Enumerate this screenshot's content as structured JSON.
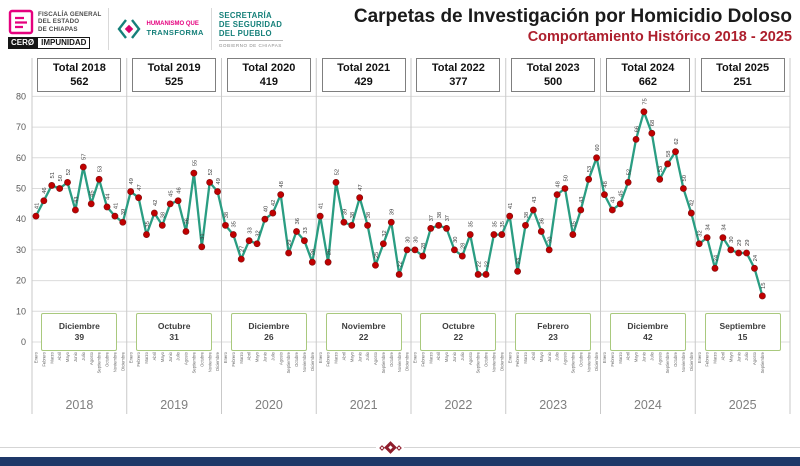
{
  "header": {
    "title": "Carpetas de Investigación por Homicidio Doloso",
    "subtitle": "Comportamiento Histórico 2018 - 2025",
    "logos": {
      "fiscalia": {
        "lines": [
          "FISCALÍA GENERAL",
          "DEL ESTADO",
          "DE CHIAPAS"
        ],
        "badge_left": "CERØ",
        "badge_right": "IMPUNIDAD"
      },
      "humanismo": {
        "lines": [
          "HUMANISMO QUE",
          "TRANSFORMA"
        ]
      },
      "secretaria": {
        "lines": [
          "SECRETARÍA",
          "DE SEGURIDAD",
          "DEL PUEBLO"
        ],
        "sub": "GOBIERNO DE CHIAPAS"
      }
    }
  },
  "colors": {
    "line_teal": "#2a9d82",
    "marker_red": "#c00000",
    "subtitle_red": "#ad1f2d",
    "footer_navy": "#1e3868",
    "min_box_border": "#a9c97e",
    "logo_pink": "#e5007e",
    "logo_teal": "#16807a"
  },
  "chart_data": {
    "type": "line",
    "title": "Carpetas de Investigación por Homicidio Doloso",
    "subtitle": "Comportamiento Histórico 2018 - 2025",
    "xlabel": "",
    "ylabel": "",
    "ylim": [
      0,
      80
    ],
    "y_ticks": [
      0,
      10,
      20,
      30,
      40,
      50,
      60,
      70,
      80
    ],
    "grid": true,
    "legend": false,
    "months": [
      "Enero",
      "Febrero",
      "Marzo",
      "Abril",
      "Mayo",
      "Junio",
      "Julio",
      "Agosto",
      "Septiembre",
      "Octubre",
      "Noviembre",
      "Diciembre"
    ],
    "years": [
      {
        "year": "2018",
        "total_label": "Total 2018",
        "total": "562",
        "min_month": "Diciembre",
        "min_value": "39",
        "values": [
          41,
          46,
          51,
          50,
          52,
          43,
          57,
          45,
          53,
          44,
          41,
          39
        ]
      },
      {
        "year": "2019",
        "total_label": "Total 2019",
        "total": "525",
        "min_month": "Octubre",
        "min_value": "31",
        "values": [
          49,
          47,
          35,
          42,
          38,
          45,
          46,
          36,
          55,
          31,
          52,
          49
        ]
      },
      {
        "year": "2020",
        "total_label": "Total 2020",
        "total": "419",
        "min_month": "Diciembre",
        "min_value": "26",
        "values": [
          38,
          35,
          27,
          33,
          32,
          40,
          42,
          48,
          29,
          36,
          33,
          26
        ]
      },
      {
        "year": "2021",
        "total_label": "Total 2021",
        "total": "429",
        "min_month": "Noviembre",
        "min_value": "22",
        "values": [
          41,
          26,
          52,
          39,
          38,
          47,
          38,
          25,
          32,
          39,
          22,
          30
        ]
      },
      {
        "year": "2022",
        "total_label": "Total 2022",
        "total": "377",
        "min_month": "Octubre",
        "min_value": "22",
        "values": [
          30,
          28,
          37,
          38,
          37,
          30,
          28,
          35,
          22,
          22,
          35,
          35
        ]
      },
      {
        "year": "2023",
        "total_label": "Total 2023",
        "total": "500",
        "min_month": "Febrero",
        "min_value": "23",
        "values": [
          41,
          23,
          38,
          43,
          36,
          30,
          48,
          50,
          35,
          43,
          53,
          60
        ]
      },
      {
        "year": "2024",
        "total_label": "Total 2024",
        "total": "662",
        "min_month": "Diciembre",
        "min_value": "42",
        "values": [
          48,
          43,
          45,
          52,
          66,
          75,
          68,
          53,
          58,
          62,
          50,
          42
        ]
      },
      {
        "year": "2025",
        "total_label": "Total 2025",
        "total": "251",
        "min_month": "Septiembre",
        "min_value": "15",
        "values": [
          32,
          34,
          24,
          34,
          30,
          29,
          29,
          24,
          15
        ]
      }
    ]
  }
}
